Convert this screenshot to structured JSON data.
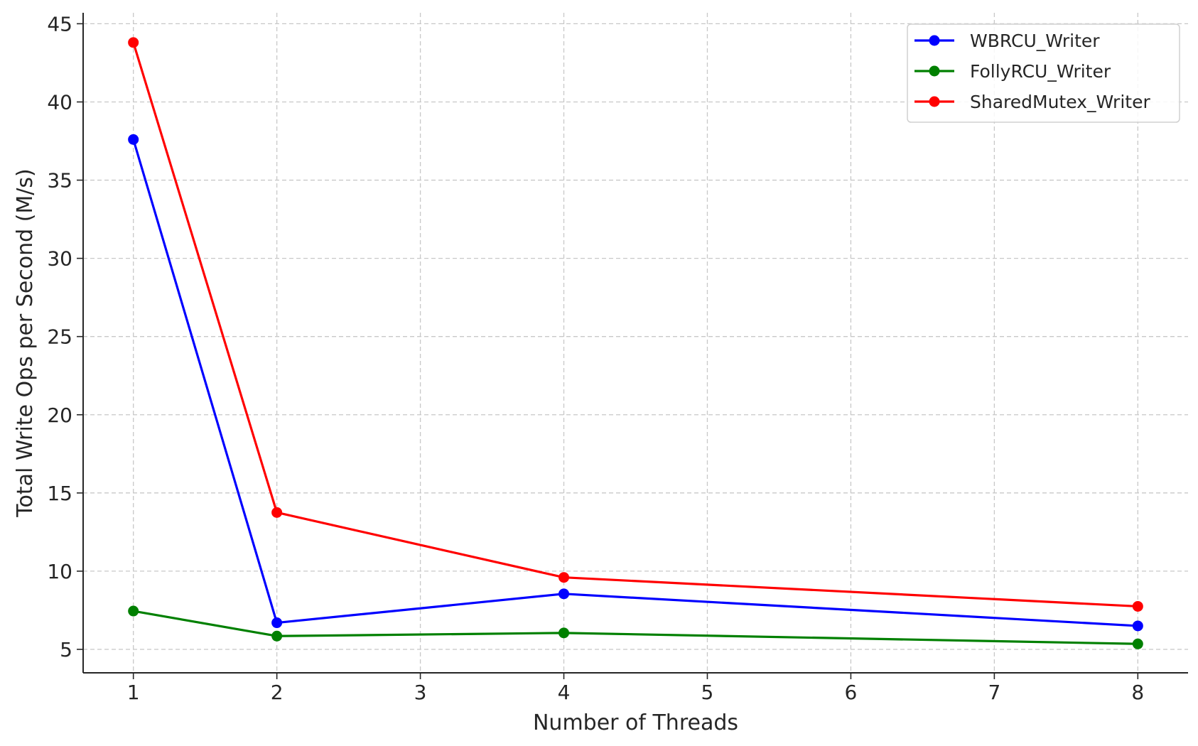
{
  "chart_data": {
    "type": "line",
    "title": "",
    "xlabel": "Number of Threads",
    "ylabel": "Total Write Ops per Second (M/s)",
    "x": [
      1,
      2,
      4,
      8
    ],
    "xlim": [
      0.65,
      8.35
    ],
    "ylim": [
      3.5,
      45.7
    ],
    "xticks": [
      1,
      2,
      3,
      4,
      5,
      6,
      7,
      8
    ],
    "yticks": [
      5,
      10,
      15,
      20,
      25,
      30,
      35,
      40,
      45
    ],
    "grid": true,
    "legend_position": "top-right",
    "series": [
      {
        "name": "WBRCU_Writer",
        "color": "#0000ff",
        "values": [
          37.6,
          6.7,
          8.55,
          6.5
        ]
      },
      {
        "name": "FollyRCU_Writer",
        "color": "#008000",
        "values": [
          7.45,
          5.85,
          6.05,
          5.35
        ]
      },
      {
        "name": "SharedMutex_Writer",
        "color": "#ff0000",
        "values": [
          43.8,
          13.75,
          9.6,
          7.75
        ]
      }
    ]
  }
}
